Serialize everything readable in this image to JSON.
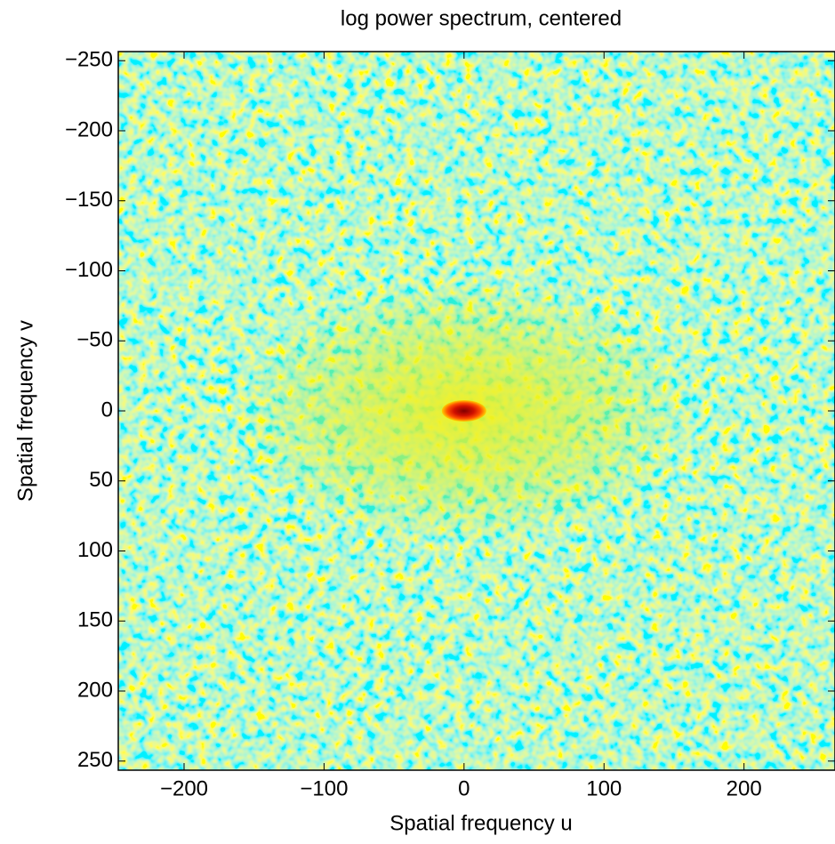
{
  "chart_data": {
    "type": "heatmap",
    "title": "log power spectrum, centered",
    "xlabel": "Spatial frequency u",
    "ylabel": "Spatial frequency v",
    "xlim": [
      -247,
      265
    ],
    "ylim": [
      -256.5,
      256.5
    ],
    "y_reversed": true,
    "xticks": [
      {
        "value": -200,
        "label": "−200"
      },
      {
        "value": -100,
        "label": "−100"
      },
      0,
      100,
      200
    ],
    "yticks": [
      {
        "value": -250,
        "label": "−250"
      },
      {
        "value": -200,
        "label": "−200"
      },
      {
        "value": -150,
        "label": "−150"
      },
      {
        "value": -100,
        "label": "−100"
      },
      {
        "value": -50,
        "label": "−50"
      },
      0,
      50,
      100,
      150,
      200,
      250
    ],
    "grid": false
  }
}
